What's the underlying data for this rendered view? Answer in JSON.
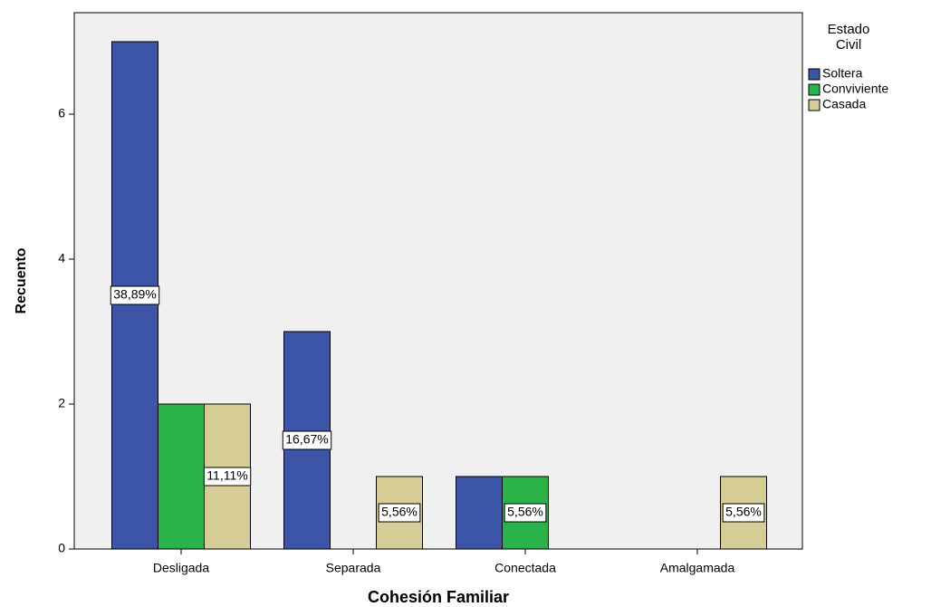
{
  "chart_data": {
    "type": "bar",
    "x_label": "Cohesión Familiar",
    "y_label": "Recuento",
    "legend_title": "Estado Civil",
    "categories": [
      "Desligada",
      "Separada",
      "Conectada",
      "Amalgamada"
    ],
    "series": [
      {
        "name": "Soltera",
        "color": "#3c55a8",
        "values": [
          7,
          3,
          1,
          0
        ],
        "percent_labels": [
          "38,89%",
          "16,67%",
          null,
          null
        ]
      },
      {
        "name": "Conviviente",
        "color": "#2bb34b",
        "values": [
          2,
          0,
          1,
          0
        ],
        "percent_labels": [
          null,
          null,
          "5,56%",
          null
        ]
      },
      {
        "name": "Casada",
        "color": "#d5cc96",
        "values": [
          2,
          1,
          0,
          1
        ],
        "percent_labels": [
          "11,11%",
          "5,56%",
          null,
          "5,56%"
        ]
      }
    ],
    "ylim": [
      0,
      7.4
    ],
    "yticks": [
      0,
      2,
      4,
      6
    ],
    "grid": false
  }
}
